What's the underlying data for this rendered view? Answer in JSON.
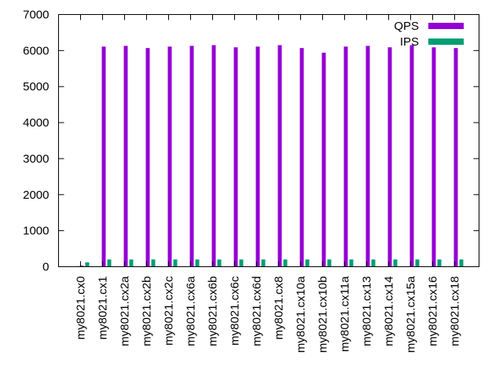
{
  "chart_data": {
    "type": "bar",
    "title": "",
    "xlabel": "",
    "ylabel": "",
    "ylim": [
      0,
      7000
    ],
    "yticks": [
      0,
      1000,
      2000,
      3000,
      4000,
      5000,
      6000,
      7000
    ],
    "grid": false,
    "legend_position": "top-right",
    "categories": [
      "my8021.cx0",
      "my8021.cx1",
      "my8021.cx2a",
      "my8021.cx2b",
      "my8021.cx2c",
      "my8021.cx6a",
      "my8021.cx6b",
      "my8021.cx6c",
      "my8021.cx6d",
      "my8021.cx8",
      "my8021.cx10a",
      "my8021.cx10b",
      "my8021.cx11a",
      "my8021.cx13",
      "my8021.cx14",
      "my8021.cx15a",
      "my8021.cx16",
      "my8021.cx18"
    ],
    "series": [
      {
        "name": "QPS",
        "color": "#9400d3",
        "values": [
          30,
          6110,
          6130,
          6070,
          6110,
          6130,
          6150,
          6090,
          6110,
          6150,
          6070,
          5940,
          6110,
          6130,
          6090,
          6150,
          6090,
          6070
        ]
      },
      {
        "name": "IPS",
        "color": "#009e73",
        "values": [
          120,
          200,
          200,
          200,
          200,
          200,
          200,
          200,
          200,
          200,
          200,
          200,
          200,
          200,
          200,
          200,
          200,
          200
        ]
      }
    ]
  }
}
